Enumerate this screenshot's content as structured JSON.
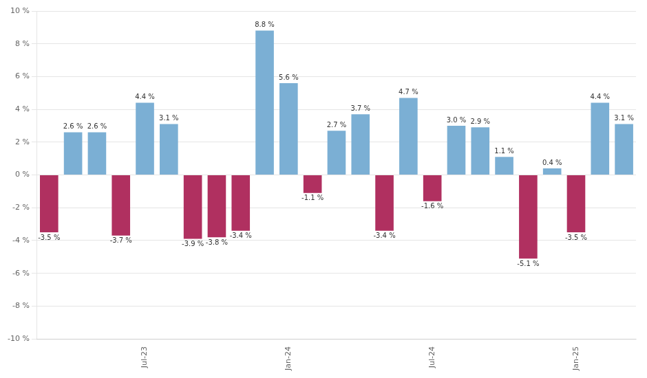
{
  "chart_data": {
    "type": "bar",
    "categories": [
      null,
      null,
      null,
      null,
      "Jul-23",
      null,
      null,
      null,
      null,
      null,
      "Jan-24",
      null,
      null,
      null,
      null,
      null,
      "Jul-24",
      null,
      null,
      null,
      null,
      null,
      "Jan-25",
      null,
      null
    ],
    "values": [
      -3.5,
      2.6,
      2.6,
      -3.7,
      4.4,
      3.1,
      -3.9,
      -3.8,
      -3.4,
      8.8,
      5.6,
      -1.1,
      2.7,
      3.7,
      -3.4,
      4.7,
      -1.6,
      3.0,
      2.9,
      1.1,
      -5.1,
      0.4,
      -3.5,
      4.4,
      3.1
    ],
    "value_labels": [
      "-3.5 %",
      "2.6 %",
      "2.6 %",
      "-3.7 %",
      "4.4 %",
      "3.1 %",
      "-3.9 %",
      "-3.8 %",
      "-3.4 %",
      "8.8 %",
      "5.6 %",
      "-1.1 %",
      "2.7 %",
      "3.7 %",
      "-3.4 %",
      "4.7 %",
      "-1.6 %",
      "3.0 %",
      "2.9 %",
      "1.1 %",
      "-5.1 %",
      "0.4 %",
      "-3.5 %",
      "4.4 %",
      "3.1 %"
    ],
    "data_labels": true,
    "colors": [
      "#b03060",
      "#7bafd4",
      "#7bafd4",
      "#b03060",
      "#7bafd4",
      "#7bafd4",
      "#b03060",
      "#b03060",
      "#b03060",
      "#7bafd4",
      "#7bafd4",
      "#b03060",
      "#7bafd4",
      "#7bafd4",
      "#b03060",
      "#7bafd4",
      "#b03060",
      "#7bafd4",
      "#7bafd4",
      "#7bafd4",
      "#b03060",
      "#7bafd4",
      "#b03060",
      "#7bafd4",
      "#7bafd4"
    ],
    "ylim": [
      -10,
      10
    ],
    "yticks": [
      {
        "value": -10,
        "label": "-10 %"
      },
      {
        "value": -8,
        "label": "-8 %"
      },
      {
        "value": -6,
        "label": "-6 %"
      },
      {
        "value": -4,
        "label": "-4 %"
      },
      {
        "value": -2,
        "label": "-2 %"
      },
      {
        "value": 0,
        "label": "0 %"
      },
      {
        "value": 2,
        "label": "2 %"
      },
      {
        "value": 4,
        "label": "4 %"
      },
      {
        "value": 6,
        "label": "6 %"
      },
      {
        "value": 8,
        "label": "8 %"
      },
      {
        "value": 10,
        "label": "10 %"
      }
    ],
    "grid": true
  }
}
